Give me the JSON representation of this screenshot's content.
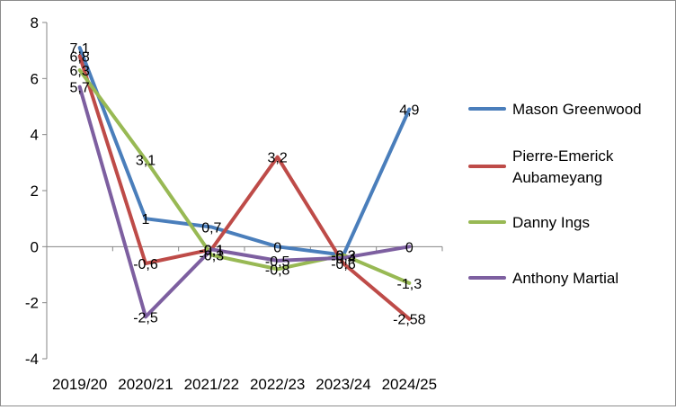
{
  "chart_data": {
    "type": "line",
    "title": "",
    "xlabel": "",
    "ylabel": "",
    "categories": [
      "2019/20",
      "2020/21",
      "2021/22",
      "2022/23",
      "2023/24",
      "2024/25"
    ],
    "ylim": [
      -4,
      8
    ],
    "yticks": [
      -4,
      -2,
      0,
      2,
      4,
      6,
      8
    ],
    "grid": false,
    "legend_position": "right",
    "series": [
      {
        "name": "Mason Greenwood",
        "color": "#4a7ebb",
        "values": [
          7.1,
          1,
          0.7,
          0,
          -0.3,
          4.9
        ],
        "labels": [
          "7,1",
          "1",
          "0,7",
          "0",
          "-0,3",
          "4,9"
        ]
      },
      {
        "name": "Pierre-Emerick Aubameyang",
        "color": "#be4b48",
        "values": [
          6.8,
          -0.6,
          -0.1,
          3.2,
          -0.6,
          -2.58
        ],
        "labels": [
          "6,8",
          "-0,6",
          "-0,1",
          "3,2",
          "-0,6",
          "-2,58"
        ]
      },
      {
        "name": "Danny Ings",
        "color": "#98b954",
        "values": [
          6.3,
          3.1,
          -0.3,
          -0.8,
          -0.3,
          -1.3
        ],
        "labels": [
          "6,3",
          "3,1",
          "-0,3",
          "-0,8",
          "-0,3",
          "-1,3"
        ]
      },
      {
        "name": "Anthony Martial",
        "color": "#7d5fa0",
        "values": [
          5.7,
          -2.5,
          -0.1,
          -0.5,
          -0.4,
          0
        ],
        "labels": [
          "5,7",
          "-2,5",
          "-0,1",
          "-0,5",
          "-0,4",
          "0"
        ]
      }
    ]
  }
}
